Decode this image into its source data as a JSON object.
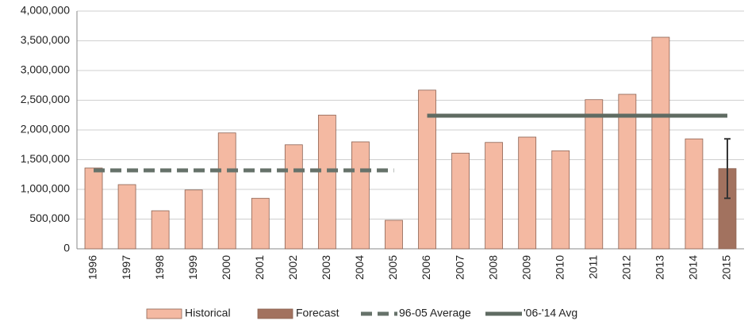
{
  "chart_data": {
    "type": "bar",
    "categories": [
      "1996",
      "1997",
      "1998",
      "1999",
      "2000",
      "2001",
      "2002",
      "2003",
      "2004",
      "2005",
      "2006",
      "2007",
      "2008",
      "2009",
      "2010",
      "2011",
      "2012",
      "2013",
      "2014",
      "2015"
    ],
    "series": [
      {
        "name": "Historical",
        "kind": "bar",
        "color": "#f4b9a2",
        "values": [
          1360000,
          1080000,
          640000,
          990000,
          1950000,
          850000,
          1750000,
          2250000,
          1800000,
          480000,
          2670000,
          1610000,
          1790000,
          1880000,
          1650000,
          2510000,
          2600000,
          3560000,
          1850000,
          null
        ]
      },
      {
        "name": "Forecast",
        "kind": "bar",
        "color": "#a2725f",
        "values": [
          null,
          null,
          null,
          null,
          null,
          null,
          null,
          null,
          null,
          null,
          null,
          null,
          null,
          null,
          null,
          null,
          null,
          null,
          null,
          1350000
        ],
        "errors": [
          null,
          null,
          null,
          null,
          null,
          null,
          null,
          null,
          null,
          null,
          null,
          null,
          null,
          null,
          null,
          null,
          null,
          null,
          null,
          500000
        ]
      },
      {
        "name": "96-05 Average",
        "kind": "line",
        "dashed": true,
        "color": "#66726a",
        "values": [
          1320000,
          1320000,
          1320000,
          1320000,
          1320000,
          1320000,
          1320000,
          1320000,
          1320000,
          1320000,
          null,
          null,
          null,
          null,
          null,
          null,
          null,
          null,
          null,
          null
        ]
      },
      {
        "name": "'06-'14 Avg",
        "kind": "line",
        "dashed": false,
        "color": "#5f6b62",
        "values": [
          null,
          null,
          null,
          null,
          null,
          null,
          null,
          null,
          null,
          null,
          2240000,
          2240000,
          2240000,
          2240000,
          2240000,
          2240000,
          2240000,
          2240000,
          2240000,
          2240000
        ]
      }
    ],
    "ylim": [
      0,
      4000000
    ],
    "yticks": [
      0,
      {
        "value": 500000,
        "label": "500,000"
      },
      {
        "value": 1000000,
        "label": "1,000,000"
      },
      {
        "value": 1500000,
        "label": "1,500,000"
      },
      {
        "value": 2000000,
        "label": "2,000,000"
      },
      {
        "value": 2500000,
        "label": "2,500,000"
      },
      {
        "value": 3000000,
        "label": "3,000,000"
      },
      {
        "value": 3500000,
        "label": "3,500,000"
      },
      {
        "value": 4000000,
        "label": "4,000,000"
      }
    ],
    "grid": true,
    "legend": "bottom"
  }
}
